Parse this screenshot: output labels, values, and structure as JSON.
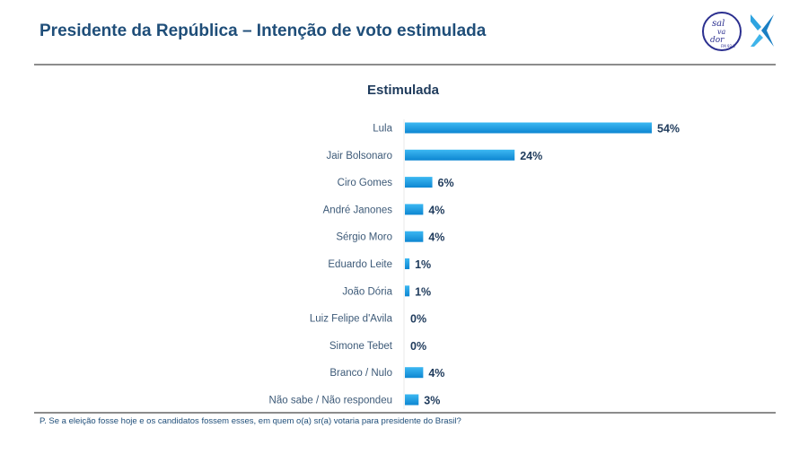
{
  "header": {
    "title": "Presidente da República – Intenção de voto estimulada",
    "logos": [
      "salvador-fm-logo",
      "x-brand-logo"
    ],
    "logo_text": [
      "sal",
      "va",
      "dor",
      "FM 92.3"
    ]
  },
  "colors": {
    "bar": "#1fa0e6",
    "bar_dark": "#0d86d1",
    "label": "#3d5a78",
    "value": "#1f3b5c",
    "title": "#1f4e79"
  },
  "chart_data": {
    "type": "bar",
    "orientation": "horizontal",
    "title": "Estimulada",
    "xlabel": "",
    "ylabel": "",
    "xlim": [
      0,
      54
    ],
    "grid": false,
    "legend": "none",
    "categories": [
      "Lula",
      "Jair Bolsonaro",
      "Ciro Gomes",
      "André Janones",
      "Sérgio Moro",
      "Eduardo Leite",
      "João Dória",
      "Luiz Felipe d'Avila",
      "Simone Tebet",
      "Branco / Nulo",
      "Não sabe / Não respondeu"
    ],
    "values": [
      54,
      24,
      6,
      4,
      4,
      1,
      1,
      0,
      0,
      4,
      3
    ],
    "value_labels": [
      "54%",
      "24%",
      "6%",
      "4%",
      "4%",
      "1%",
      "1%",
      "0%",
      "0%",
      "4%",
      "3%"
    ]
  },
  "footnote": "P. Se a eleição fosse hoje e os candidatos fossem esses, em quem o(a) sr(a) votaria para presidente do Brasil?"
}
